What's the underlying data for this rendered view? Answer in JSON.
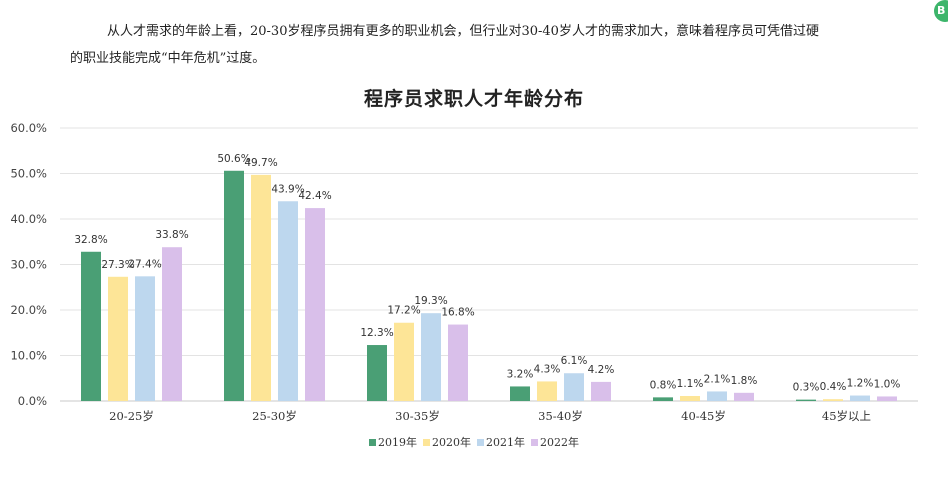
{
  "intro": {
    "line1": "从人才需求的年龄上看，20-30岁程序员拥有更多的职业机会，但行业对30-40岁人才的需求加大，意味着程序员可凭借过硬",
    "line2": "的职业技能完成“中年危机”过度。"
  },
  "corner_badge": "B",
  "chart_data": {
    "type": "bar",
    "title": "程序员求职人才年龄分布",
    "categories": [
      "20-25岁",
      "25-30岁",
      "30-35岁",
      "35-40岁",
      "40-45岁",
      "45岁以上"
    ],
    "series": [
      {
        "name": "2019年",
        "values": [
          32.8,
          50.6,
          12.3,
          3.2,
          0.8,
          0.3
        ],
        "color": "#4a9f75"
      },
      {
        "name": "2020年",
        "values": [
          27.3,
          49.7,
          17.2,
          4.3,
          1.1,
          0.4
        ],
        "color": "#fde597"
      },
      {
        "name": "2021年",
        "values": [
          27.4,
          43.9,
          19.3,
          6.1,
          2.1,
          1.2
        ],
        "color": "#bdd7ee"
      },
      {
        "name": "2022年",
        "values": [
          33.8,
          42.4,
          16.8,
          4.2,
          1.8,
          1.0
        ],
        "color": "#d9bfea"
      }
    ],
    "yticks": [
      "0.0%",
      "10.0%",
      "20.0%",
      "30.0%",
      "40.0%",
      "50.0%",
      "60.0%"
    ],
    "ylim": [
      0,
      60
    ],
    "value_suffix": "%",
    "grid": true,
    "legend_position": "bottom"
  }
}
